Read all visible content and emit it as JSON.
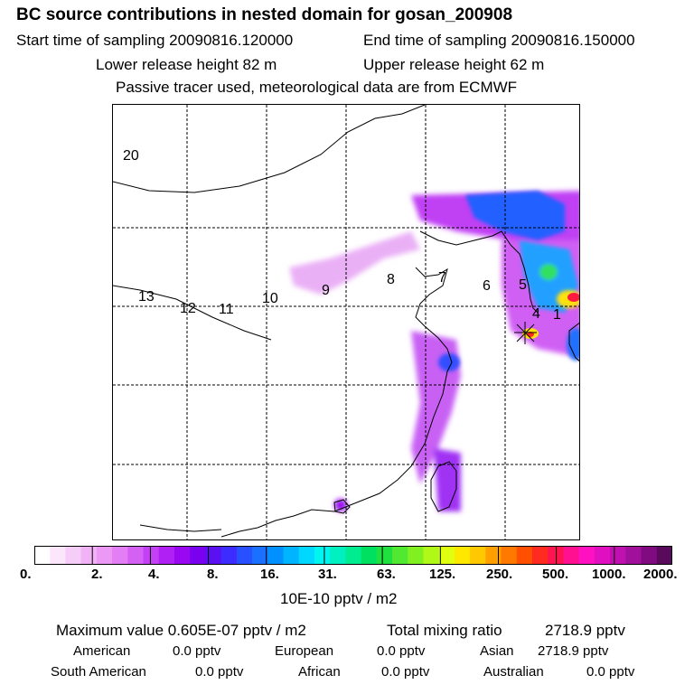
{
  "header": {
    "title": "BC  source contributions in nested domain for gosan_200908",
    "start_label": "Start time of sampling 20090816.120000",
    "end_label": "End time of sampling 20090816.150000",
    "lower_label": "Lower release height   82 m",
    "upper_label": "Upper release height   62 m",
    "note": "Passive tracer used, meteorological data are from ECMWF"
  },
  "map": {
    "region_labels": [
      "20",
      "13",
      "12",
      "11",
      "10",
      "9",
      "8",
      "7",
      "6",
      "5",
      "4",
      "1"
    ],
    "receptor": "gosan",
    "colors": {
      "tracer_low": "#b000f0",
      "tracer_mid": "#0040ff",
      "tracer_high": "#ff1a40",
      "coast": "#000000"
    }
  },
  "colorbar": {
    "ticks": [
      "0.",
      "2.",
      "4.",
      "8.",
      "16.",
      "31.",
      "63.",
      "125.",
      "250.",
      "500.",
      "1000.",
      "2000."
    ],
    "colors": [
      "#ffffff",
      "#fbe6fb",
      "#f6ccf8",
      "#f1b2f6",
      "#eb99f4",
      "#e37ef4",
      "#d460f4",
      "#c440f4",
      "#b020f4",
      "#9a08f2",
      "#7a00f0",
      "#5a10f0",
      "#3c2cff",
      "#2850ff",
      "#1a70ff",
      "#0090ff",
      "#00b4ff",
      "#00d8ff",
      "#00f4f0",
      "#00f0c0",
      "#00ec90",
      "#00e060",
      "#20e040",
      "#50e830",
      "#80f020",
      "#b0f818",
      "#e0ff10",
      "#ffe800",
      "#ffc800",
      "#ffa000",
      "#ff7800",
      "#ff5000",
      "#ff2a20",
      "#ff1450",
      "#ff1090",
      "#ff10c0",
      "#e010c0",
      "#c010b0",
      "#a0109a",
      "#800a80",
      "#5a0a5a"
    ],
    "units": "10E-10 pptv / m2"
  },
  "footer": {
    "max_label": "Maximum value  0.605E-07 pptv / m2",
    "total_label": "Total mixing ratio",
    "total_value": "2718.9 pptv",
    "american_label": "American",
    "american_value": "0.0 pptv",
    "european_label": "European",
    "european_value": "0.0 pptv",
    "asian_label": "Asian",
    "asian_value": "2718.9 pptv",
    "south_american_label": "South American",
    "south_american_value": "0.0 pptv",
    "african_label": "African",
    "african_value": "0.0 pptv",
    "australian_label": "Australian",
    "australian_value": "0.0 pptv"
  }
}
